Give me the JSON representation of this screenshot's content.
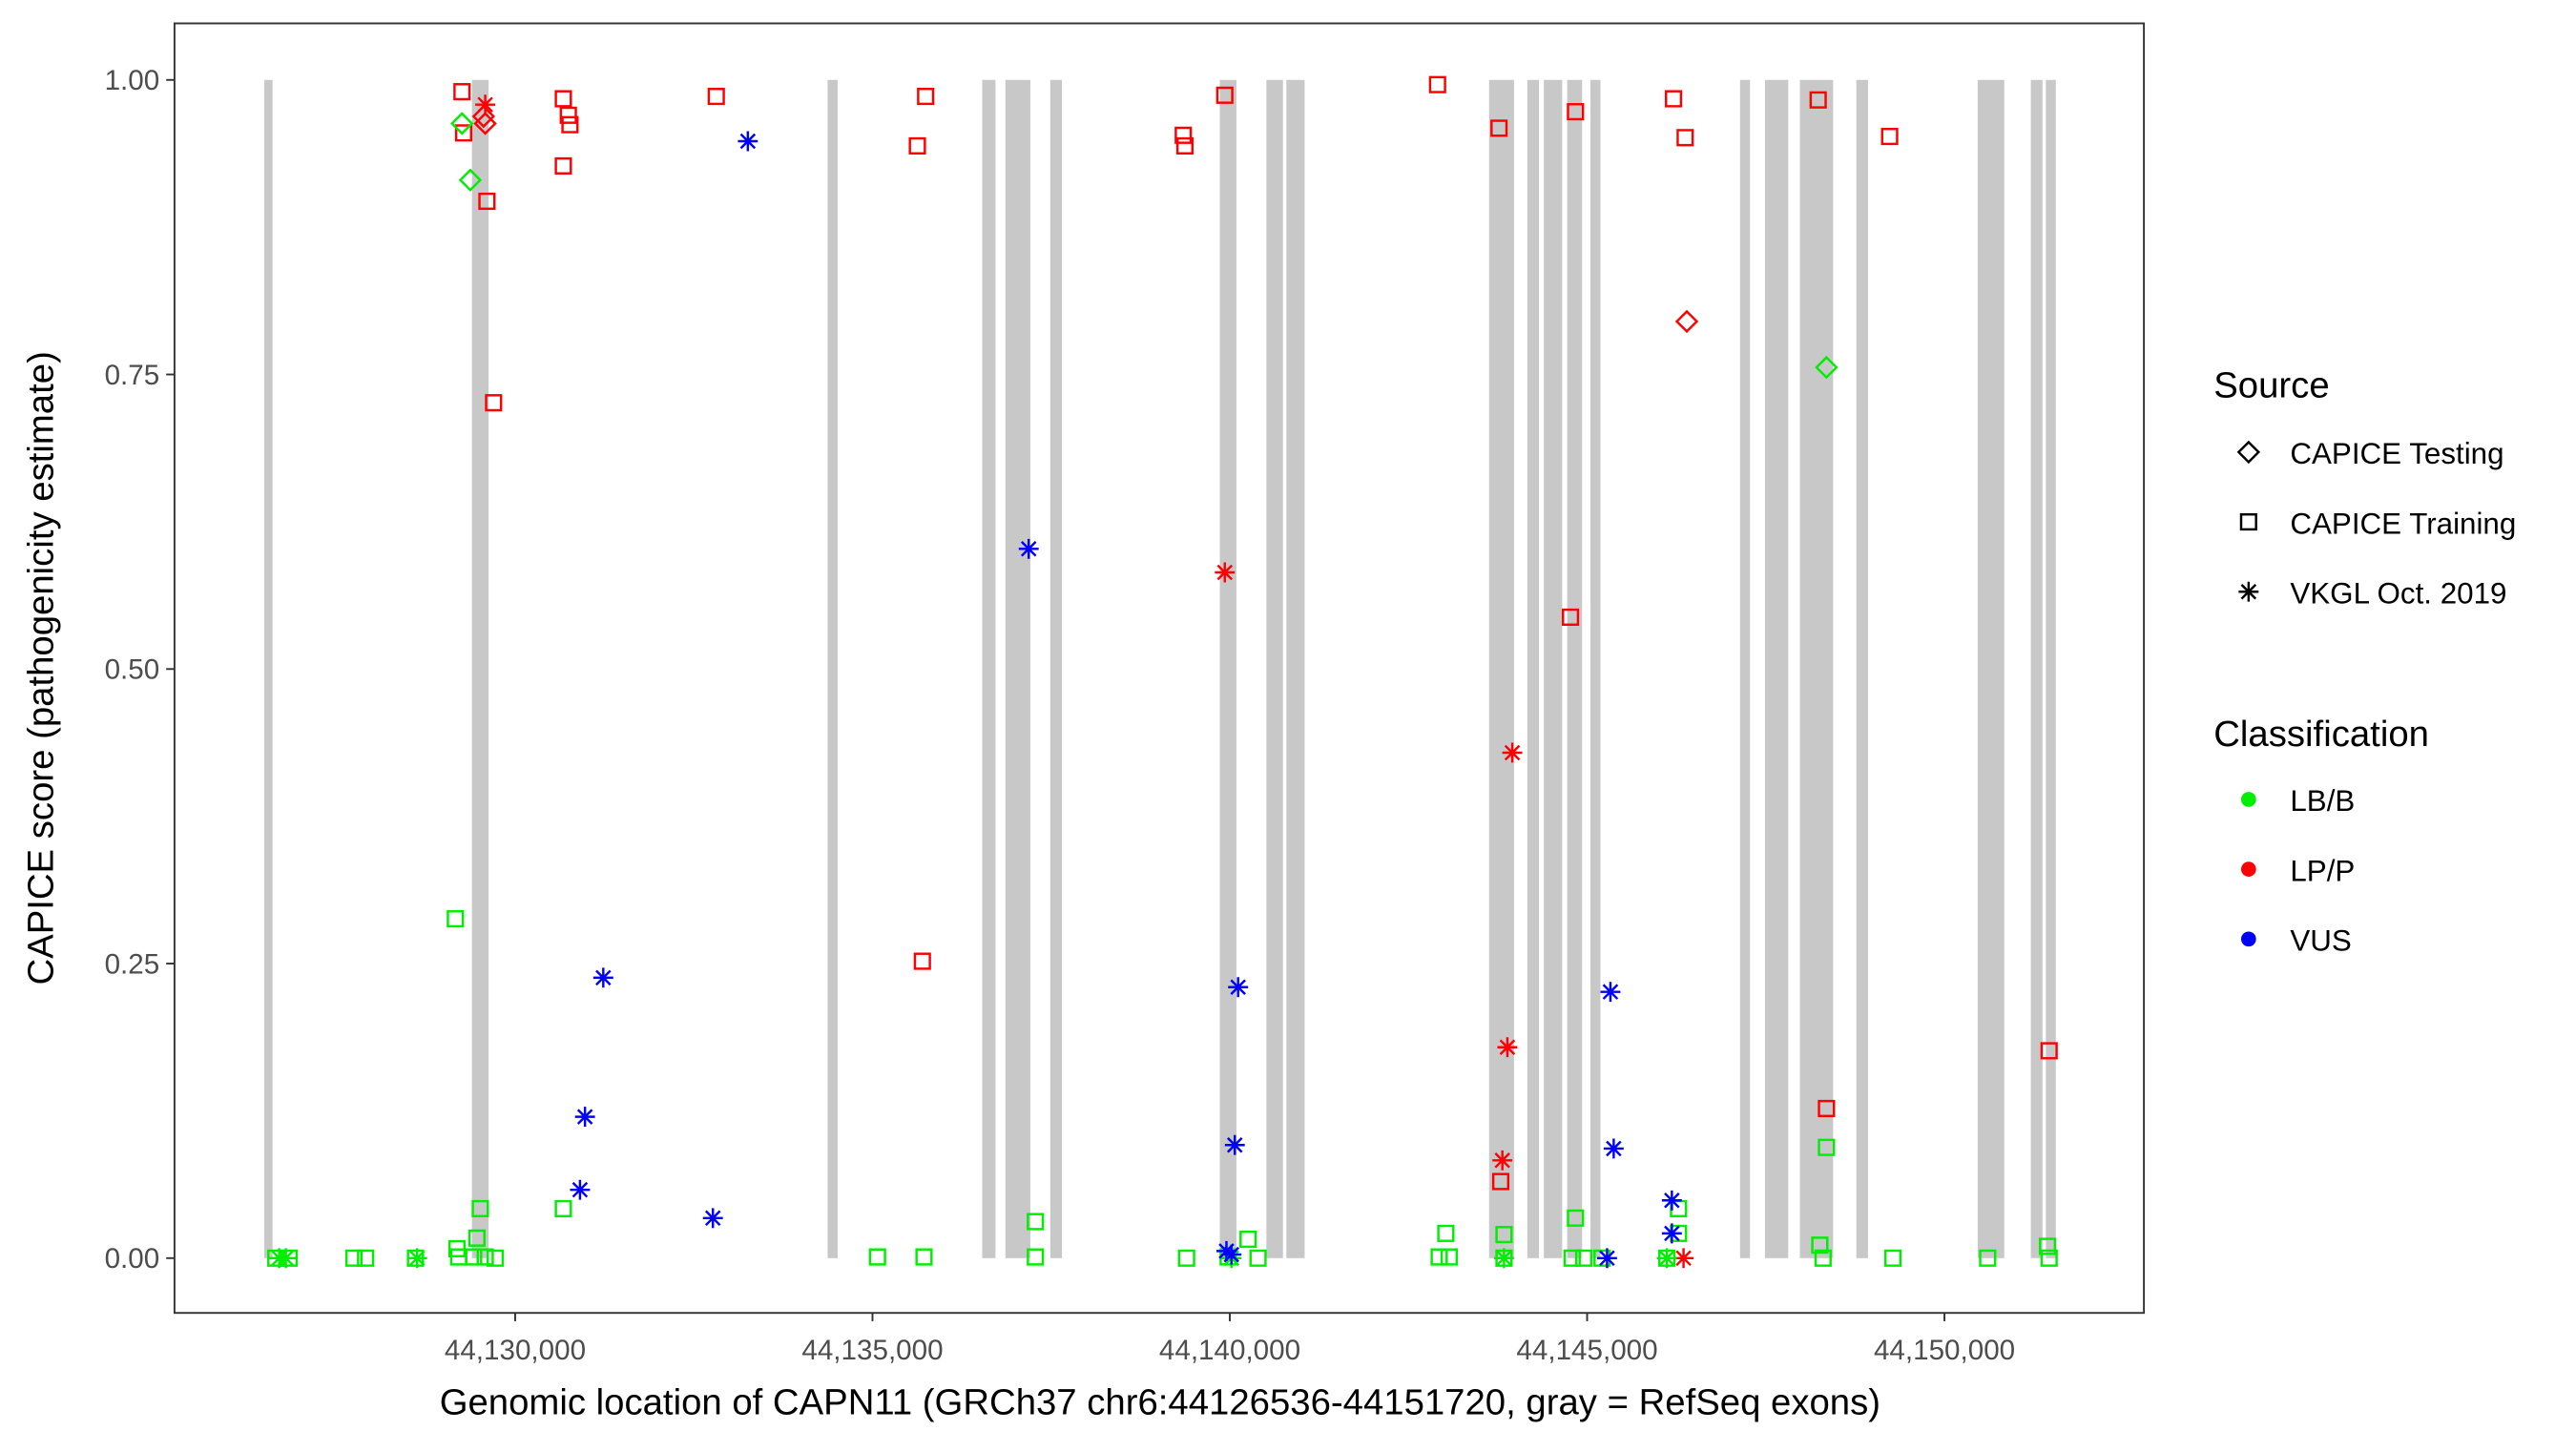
{
  "chart_data": {
    "type": "scatter",
    "xlabel": "Genomic location of CAPN11 (GRCh37 chr6:44126536-44151720, gray = RefSeq exons)",
    "ylabel": "CAPICE score (pathogenicity estimate)",
    "xlim": [
      44125233,
      44152791
    ],
    "ylim": [
      -0.0465,
      1.048
    ],
    "xticks": [
      44130000,
      44135000,
      44140000,
      44145000,
      44150000
    ],
    "xtick_labels": [
      "44,130,000",
      "44,135,000",
      "44,140,000",
      "44,145,000",
      "44,150,000"
    ],
    "yticks": [
      0,
      0.25,
      0.5,
      0.75,
      1.0
    ],
    "ytick_labels": [
      "0.00",
      "0.25",
      "0.50",
      "0.75",
      "1.00"
    ],
    "grid": false,
    "legend_position": "right",
    "legend_source": {
      "title": "Source",
      "items": [
        "CAPICE Testing",
        "CAPICE Training",
        "VKGL Oct. 2019"
      ],
      "shapes": [
        "diamond",
        "square",
        "asterisk"
      ]
    },
    "legend_class": {
      "title": "Classification",
      "items": [
        "LB/B",
        "LP/P",
        "VUS"
      ],
      "colors": [
        "#00ee00",
        "#ff0000",
        "#0000ff"
      ]
    },
    "exon_color": "#c8c8c8",
    "exons": [
      [
        44126488,
        44126605
      ],
      [
        44129395,
        44129628
      ],
      [
        44134372,
        44134512
      ],
      [
        44136535,
        44136721
      ],
      [
        44136860,
        44137209
      ],
      [
        44137488,
        44137651
      ],
      [
        44139860,
        44140093
      ],
      [
        44140512,
        44140744
      ],
      [
        44140791,
        44141047
      ],
      [
        44143628,
        44143977
      ],
      [
        44144163,
        44144326
      ],
      [
        44144395,
        44144651
      ],
      [
        44144721,
        44144930
      ],
      [
        44145047,
        44145186
      ],
      [
        44147140,
        44147279
      ],
      [
        44147488,
        44147814
      ],
      [
        44147977,
        44148442
      ],
      [
        44148767,
        44148930
      ],
      [
        44150465,
        44150837
      ],
      [
        44151209,
        44151372
      ],
      [
        44151419,
        44151558
      ]
    ],
    "point_fields": [
      "position",
      "score",
      "source_index",
      "class_index"
    ],
    "points": [
      [
        44129256,
        0.99,
        1,
        1
      ],
      [
        44129279,
        0.955,
        1,
        1
      ],
      [
        44129605,
        0.897,
        1,
        1
      ],
      [
        44129698,
        0.726,
        1,
        1
      ],
      [
        44130674,
        0.984,
        1,
        1
      ],
      [
        44130674,
        0.927,
        1,
        1
      ],
      [
        44130744,
        0.97,
        1,
        1
      ],
      [
        44130767,
        0.962,
        1,
        1
      ],
      [
        44132814,
        0.986,
        1,
        1
      ],
      [
        44135628,
        0.944,
        1,
        1
      ],
      [
        44135744,
        0.986,
        1,
        1
      ],
      [
        44135698,
        0.252,
        1,
        1
      ],
      [
        44139349,
        0.953,
        1,
        1
      ],
      [
        44139372,
        0.944,
        1,
        1
      ],
      [
        44139930,
        0.987,
        1,
        1
      ],
      [
        44142907,
        0.996,
        1,
        1
      ],
      [
        44143767,
        0.959,
        1,
        1
      ],
      [
        44144767,
        0.544,
        1,
        1
      ],
      [
        44144837,
        0.973,
        1,
        1
      ],
      [
        44143791,
        0.065,
        1,
        1
      ],
      [
        44146209,
        0.984,
        1,
        1
      ],
      [
        44146372,
        0.951,
        1,
        1
      ],
      [
        44148233,
        0.983,
        1,
        1
      ],
      [
        44149233,
        0.952,
        1,
        1
      ],
      [
        44148349,
        0.127,
        1,
        1
      ],
      [
        44151465,
        0.176,
        1,
        1
      ],
      [
        44129558,
        0.969,
        0,
        1
      ],
      [
        44129581,
        0.963,
        0,
        1
      ],
      [
        44146395,
        0.795,
        0,
        1
      ],
      [
        44129581,
        0.979,
        2,
        1
      ],
      [
        44139930,
        0.582,
        2,
        1
      ],
      [
        44143953,
        0.429,
        2,
        1
      ],
      [
        44143884,
        0.179,
        2,
        1
      ],
      [
        44143814,
        0.083,
        2,
        1
      ],
      [
        44146349,
        0.0,
        2,
        1
      ],
      [
        44129256,
        0.963,
        0,
        0
      ],
      [
        44129372,
        0.915,
        0,
        0
      ],
      [
        44148349,
        0.756,
        0,
        0
      ],
      [
        44129163,
        0.288,
        1,
        0
      ],
      [
        44129512,
        0.042,
        1,
        0
      ],
      [
        44130674,
        0.042,
        1,
        0
      ],
      [
        44137279,
        0.031,
        1,
        0
      ],
      [
        44135070,
        0.001,
        1,
        0
      ],
      [
        44135721,
        0.001,
        1,
        0
      ],
      [
        44137279,
        0.001,
        1,
        0
      ],
      [
        44139395,
        0.0,
        1,
        0
      ],
      [
        44140256,
        0.016,
        1,
        0
      ],
      [
        44140395,
        0.0,
        1,
        0
      ],
      [
        44143023,
        0.021,
        1,
        0
      ],
      [
        44142930,
        0.001,
        1,
        0
      ],
      [
        44143070,
        0.001,
        1,
        0
      ],
      [
        44143837,
        0.02,
        1,
        0
      ],
      [
        44143837,
        0.0,
        1,
        0
      ],
      [
        44144837,
        0.034,
        1,
        0
      ],
      [
        44144791,
        0.0,
        1,
        0
      ],
      [
        44144953,
        0.0,
        1,
        0
      ],
      [
        44145209,
        0.0,
        1,
        0
      ],
      [
        44146279,
        0.042,
        1,
        0
      ],
      [
        44146279,
        0.021,
        1,
        0
      ],
      [
        44146116,
        0.0,
        1,
        0
      ],
      [
        44148256,
        0.011,
        1,
        0
      ],
      [
        44148302,
        0.0,
        1,
        0
      ],
      [
        44149279,
        0.0,
        1,
        0
      ],
      [
        44150605,
        0.0,
        1,
        0
      ],
      [
        44151442,
        0.01,
        1,
        0
      ],
      [
        44151465,
        0.0,
        1,
        0
      ],
      [
        44148349,
        0.094,
        1,
        0
      ],
      [
        44129186,
        0.008,
        1,
        0
      ],
      [
        44129209,
        0.001,
        1,
        0
      ],
      [
        44129465,
        0.017,
        1,
        0
      ],
      [
        44129419,
        0.001,
        1,
        0
      ],
      [
        44129581,
        0.001,
        1,
        0
      ],
      [
        44129721,
        0.0,
        1,
        0
      ],
      [
        44127744,
        0.0,
        1,
        0
      ],
      [
        44127907,
        0.0,
        1,
        0
      ],
      [
        44126651,
        0.0,
        1,
        0
      ],
      [
        44126837,
        0.0,
        1,
        0
      ],
      [
        44128605,
        0.0,
        1,
        0
      ],
      [
        44139977,
        0.001,
        1,
        0
      ],
      [
        44126698,
        0.0,
        2,
        0
      ],
      [
        44126791,
        0.0,
        2,
        0
      ],
      [
        44128628,
        0.0,
        2,
        0
      ],
      [
        44140023,
        0.0,
        2,
        0
      ],
      [
        44143837,
        0.0,
        2,
        0
      ],
      [
        44146116,
        0.0,
        2,
        0
      ],
      [
        44131233,
        0.238,
        2,
        2
      ],
      [
        44130977,
        0.12,
        2,
        2
      ],
      [
        44130907,
        0.058,
        2,
        2
      ],
      [
        44132767,
        0.034,
        2,
        2
      ],
      [
        44133256,
        0.948,
        2,
        2
      ],
      [
        44137186,
        0.602,
        2,
        2
      ],
      [
        44140116,
        0.23,
        2,
        2
      ],
      [
        44140070,
        0.096,
        2,
        2
      ],
      [
        44139953,
        0.006,
        2,
        2
      ],
      [
        44140023,
        0.003,
        2,
        2
      ],
      [
        44145326,
        0.226,
        2,
        2
      ],
      [
        44145372,
        0.093,
        2,
        2
      ],
      [
        44146186,
        0.049,
        2,
        2
      ],
      [
        44146186,
        0.021,
        2,
        2
      ],
      [
        44145279,
        0.0,
        2,
        2
      ]
    ]
  }
}
